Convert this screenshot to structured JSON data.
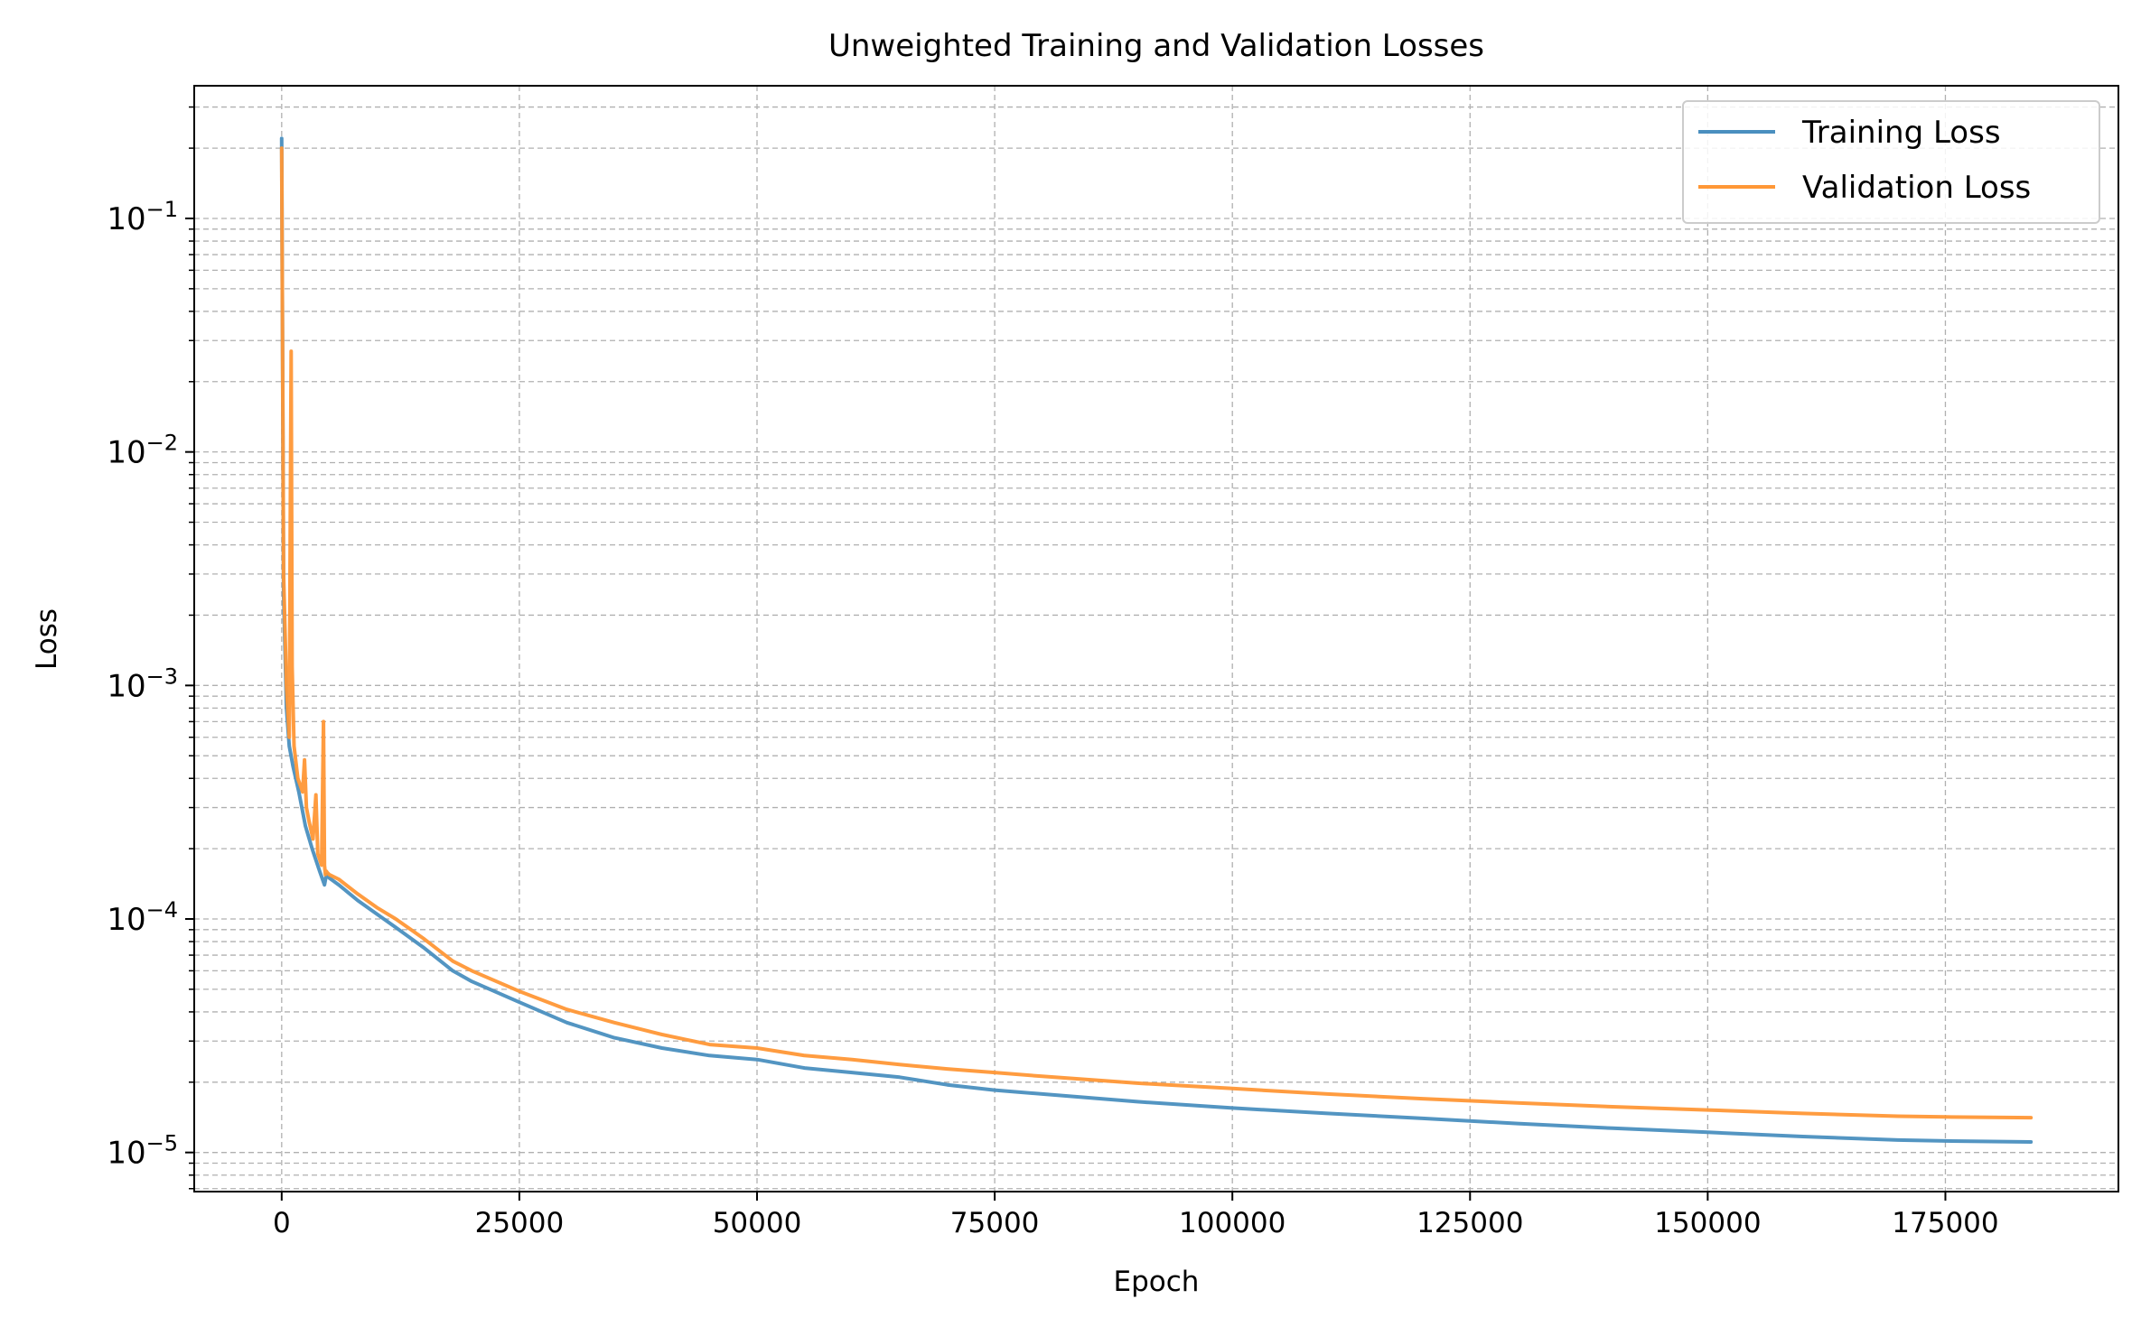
{
  "chart_data": {
    "type": "line",
    "title": "Unweighted Training and Validation Losses",
    "xlabel": "Epoch",
    "ylabel": "Loss",
    "yscale": "log",
    "xlim": [
      -9200,
      193200
    ],
    "ylim": [
      6.8e-06,
      0.37
    ],
    "grid": "both (major and minor), dashed",
    "legend_position": "top-right",
    "x_ticks": [
      0,
      25000,
      50000,
      75000,
      100000,
      125000,
      150000,
      175000
    ],
    "x_tick_labels": [
      "0",
      "25000",
      "50000",
      "75000",
      "100000",
      "125000",
      "150000",
      "175000"
    ],
    "y_ticks": [
      0.1,
      0.01,
      0.001,
      0.0001,
      1e-05
    ],
    "y_tick_labels": [
      {
        "base": "10",
        "exp": "−1"
      },
      {
        "base": "10",
        "exp": "−2"
      },
      {
        "base": "10",
        "exp": "−3"
      },
      {
        "base": "10",
        "exp": "−4"
      },
      {
        "base": "10",
        "exp": "−5"
      }
    ],
    "series": [
      {
        "name": "Training Loss",
        "color": "#4a8fbf",
        "x": [
          0,
          200,
          500,
          800,
          1200,
          1800,
          2500,
          3200,
          4000,
          4500,
          4700,
          5000,
          6000,
          8000,
          10000,
          12000,
          15000,
          18000,
          20000,
          25000,
          30000,
          35000,
          40000,
          45000,
          50000,
          55000,
          60000,
          65000,
          70000,
          75000,
          80000,
          90000,
          100000,
          110000,
          120000,
          130000,
          140000,
          150000,
          160000,
          170000,
          175000,
          184000
        ],
        "y": [
          0.22,
          0.0025,
          0.0008,
          0.00055,
          0.00045,
          0.00035,
          0.00025,
          0.0002,
          0.00016,
          0.00014,
          0.000155,
          0.00015,
          0.00014,
          0.00012,
          0.000105,
          9.2e-05,
          7.5e-05,
          6e-05,
          5.4e-05,
          4.4e-05,
          3.6e-05,
          3.1e-05,
          2.8e-05,
          2.6e-05,
          2.5e-05,
          2.3e-05,
          2.2e-05,
          2.1e-05,
          1.95e-05,
          1.85e-05,
          1.78e-05,
          1.65e-05,
          1.55e-05,
          1.47e-05,
          1.4e-05,
          1.33e-05,
          1.27e-05,
          1.22e-05,
          1.17e-05,
          1.13e-05,
          1.12e-05,
          1.11e-05
        ]
      },
      {
        "name": "Validation Loss",
        "color": "#ff9736",
        "x": [
          0,
          200,
          500,
          800,
          900,
          1000,
          1100,
          1300,
          1700,
          2200,
          2400,
          2600,
          2900,
          3300,
          3600,
          3800,
          4000,
          4200,
          4400,
          4500,
          4600,
          4700,
          4800,
          5000,
          6000,
          8000,
          10000,
          12000,
          15000,
          18000,
          20000,
          25000,
          30000,
          35000,
          40000,
          45000,
          50000,
          55000,
          60000,
          65000,
          70000,
          75000,
          80000,
          90000,
          100000,
          110000,
          120000,
          130000,
          140000,
          150000,
          160000,
          170000,
          175000,
          184000
        ],
        "y": [
          0.2,
          0.003,
          0.001,
          0.0006,
          0.005,
          0.027,
          0.0012,
          0.00055,
          0.0004,
          0.00035,
          0.00048,
          0.0003,
          0.00026,
          0.00022,
          0.00034,
          0.00019,
          0.00018,
          0.00017,
          0.0007,
          0.00017,
          0.000155,
          0.00016,
          0.000158,
          0.000155,
          0.000148,
          0.000128,
          0.000112,
          0.0001,
          8.2e-05,
          6.6e-05,
          6e-05,
          4.9e-05,
          4.1e-05,
          3.6e-05,
          3.2e-05,
          2.9e-05,
          2.8e-05,
          2.6e-05,
          2.5e-05,
          2.38e-05,
          2.28e-05,
          2.2e-05,
          2.12e-05,
          1.98e-05,
          1.88e-05,
          1.78e-05,
          1.7e-05,
          1.63e-05,
          1.57e-05,
          1.52e-05,
          1.47e-05,
          1.43e-05,
          1.42e-05,
          1.41e-05
        ]
      }
    ]
  }
}
